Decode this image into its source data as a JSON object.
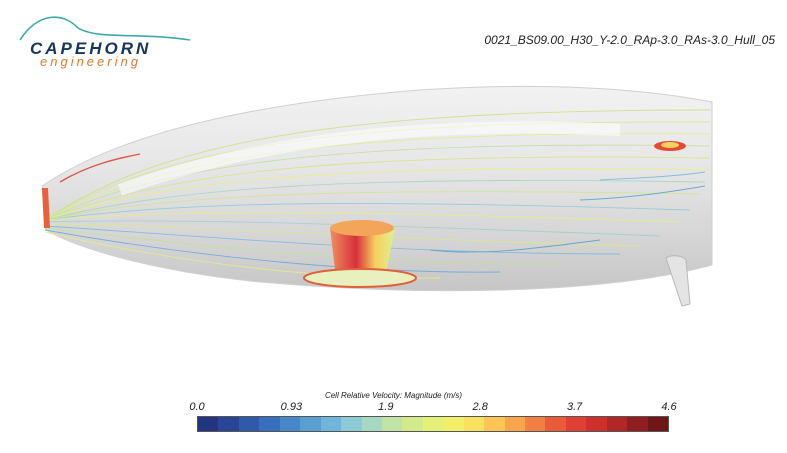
{
  "logo": {
    "name": "CAPEHORN",
    "sub": "engineering",
    "colors": {
      "arc": "#3fa9a9",
      "name": "#17365d",
      "sub": "#e07a2e"
    }
  },
  "run_title": "0021_BS09.00_H30_Y-2.0_RAp-3.0_RAs-3.0_Hull_05",
  "legend": {
    "title": "Cell Relative Velocity: Magnitude (m/s)",
    "ticks": [
      "0.0",
      "0.93",
      "1.9",
      "2.8",
      "3.7",
      "4.6"
    ],
    "range": [
      0.0,
      4.6
    ],
    "palette": [
      "#24347e",
      "#2a4596",
      "#3059aa",
      "#386fbc",
      "#4786c8",
      "#5a9fd2",
      "#71b6da",
      "#8ccbd6",
      "#a7d9c2",
      "#bfe3a6",
      "#d3ea8b",
      "#e5f078",
      "#f2f06a",
      "#f8e061",
      "#fbc658",
      "#f8a44d",
      "#f27f43",
      "#e95c3a",
      "#de4133",
      "#cc2f2c",
      "#b12626",
      "#8f1e20",
      "#6f1717"
    ]
  }
}
